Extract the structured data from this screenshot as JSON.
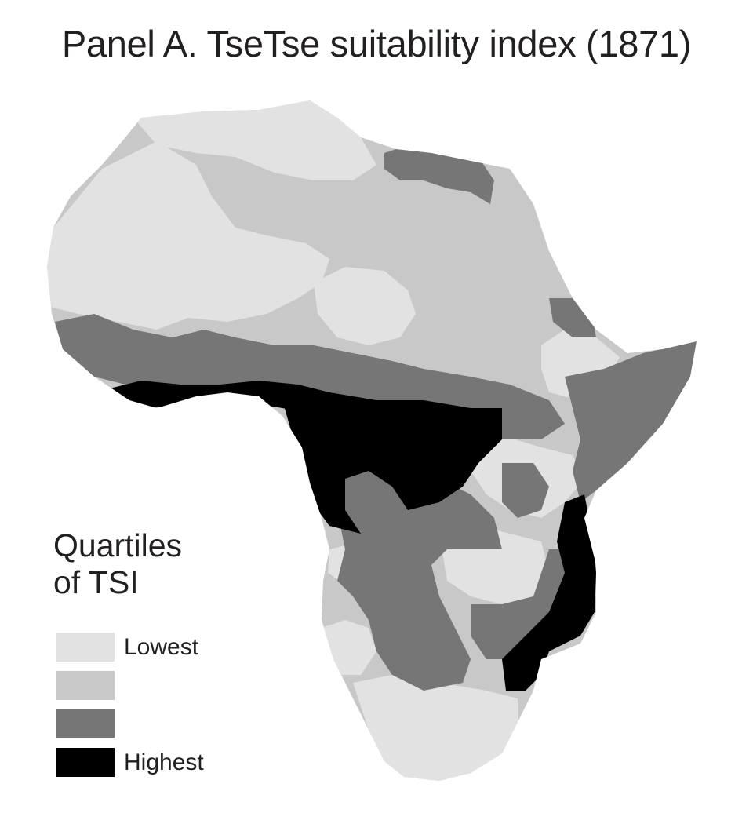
{
  "title": "Panel A. TseTse suitability index (1871)",
  "legend": {
    "title": "Quartiles\nof TSI",
    "items": [
      {
        "label": "Lowest",
        "color": "#e2e2e2"
      },
      {
        "label": "",
        "color": "#c8c8c8"
      },
      {
        "label": "",
        "color": "#767676"
      },
      {
        "label": "Highest",
        "color": "#000000"
      }
    ]
  },
  "palette": {
    "lowest": "#e2e2e2",
    "second": "#c8c8c8",
    "third": "#767676",
    "highest": "#000000",
    "background": "#ffffff"
  }
}
